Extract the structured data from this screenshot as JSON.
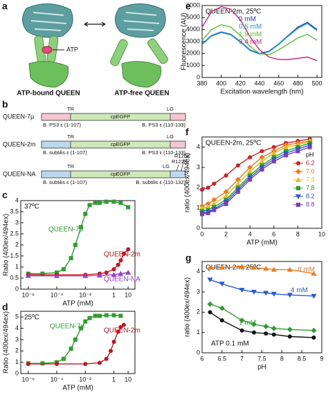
{
  "panel_a": {
    "label": "a",
    "ligand": "ATP",
    "captions": [
      "ATP-bound QUEEN",
      "ATP-free QUEEN"
    ]
  },
  "panel_b": {
    "label": "b",
    "rows": [
      {
        "name": "QUEEN-7μ",
        "tr": "TR",
        "lg": "LG",
        "domain": "cpEGFP",
        "left": "B. PS3 ε (1-107)",
        "right": "B. PS3 ε (110-133)"
      },
      {
        "name": "QUEEN-2m",
        "tr": "TR",
        "lg": "LG",
        "domain": "cpEGFP",
        "left": "B. subtilis ε (1-107)",
        "right": "B. PS3 ε (110-133)"
      },
      {
        "name": "QUEEN-NA",
        "tr": "TR",
        "lg": "LG",
        "domain": "cpEGFP",
        "left": "B. subtilis ε (1-107)",
        "right": "B. subtilis ε (110-132)",
        "mutations": [
          "R122K",
          "R126K"
        ]
      }
    ]
  },
  "chart_data": [
    {
      "type": "line",
      "label": "c",
      "annotation": "37ºC",
      "xlabel": "ATP (mM)",
      "ylabel": "Ratio (400ex/494ex)",
      "xscale": "log",
      "legend": "inline",
      "xlim": [
        3e-07,
        30
      ],
      "xticks": [
        {
          "value": 1e-06,
          "label": "10⁻⁶"
        },
        {
          "value": 0.0001,
          "label": "10⁻⁴"
        },
        {
          "value": 0.01,
          "label": "10⁻²"
        },
        1,
        10
      ],
      "ylim": [
        0,
        4
      ],
      "yticks": [
        0,
        0.5,
        1,
        1.5,
        2,
        2.5,
        3,
        3.5,
        4
      ],
      "series": [
        {
          "name": "QUEEN-7μ",
          "color": "#2e9e2e",
          "marker": "square",
          "x": [
            1e-06,
            1e-05,
            0.0001,
            0.0003,
            0.001,
            0.002,
            0.005,
            0.01,
            0.02,
            0.05,
            0.1,
            0.3,
            1,
            3,
            10
          ],
          "values": [
            0.7,
            0.7,
            0.75,
            0.9,
            1.4,
            2.0,
            2.8,
            3.4,
            3.8,
            3.9,
            3.9,
            3.95,
            3.95,
            3.9,
            3.7
          ]
        },
        {
          "name": "QUEEN-2m",
          "color": "#c8141e",
          "marker": "circle",
          "x": [
            1e-06,
            0.0001,
            0.01,
            0.1,
            0.3,
            1,
            2,
            3,
            5,
            10
          ],
          "values": [
            0.65,
            0.65,
            0.65,
            0.7,
            0.75,
            0.9,
            1.1,
            1.3,
            1.6,
            1.8
          ]
        },
        {
          "name": "QUEEN-NA",
          "color": "#9a3cc8",
          "marker": "triangle",
          "x": [
            1e-06,
            0.0001,
            0.01,
            0.1,
            1,
            3,
            10
          ],
          "values": [
            0.6,
            0.6,
            0.6,
            0.62,
            0.65,
            0.7,
            0.75
          ]
        }
      ]
    },
    {
      "type": "line",
      "label": "d",
      "annotation": "25ºC",
      "xlabel": "ATP (mM)",
      "ylabel": "Ratio (400ex/494ex)",
      "xscale": "log",
      "legend": "inline",
      "xlim": [
        3e-07,
        30
      ],
      "xticks": [
        {
          "value": 1e-06,
          "label": "10⁻⁶"
        },
        {
          "value": 0.0001,
          "label": "10⁻⁴"
        },
        {
          "value": 0.01,
          "label": "10⁻²"
        },
        1,
        10
      ],
      "ylim": [
        0,
        5.5
      ],
      "yticks": [
        0,
        1,
        2,
        3,
        4,
        5
      ],
      "series": [
        {
          "name": "QUEEN-7μ",
          "color": "#2e9e2e",
          "marker": "square",
          "x": [
            1e-06,
            1e-05,
            0.0001,
            0.0003,
            0.001,
            0.002,
            0.005,
            0.01,
            0.02,
            0.05,
            0.1,
            0.3,
            1,
            3
          ],
          "values": [
            0.9,
            0.9,
            1.0,
            1.3,
            2.2,
            3.0,
            4.0,
            4.6,
            4.9,
            5.1,
            5.1,
            5.15,
            5.15,
            5.1
          ]
        },
        {
          "name": "QUEEN-2m",
          "color": "#c8141e",
          "marker": "circle",
          "x": [
            1e-06,
            0.0001,
            0.01,
            0.1,
            0.3,
            0.6,
            1,
            2,
            3,
            5
          ],
          "values": [
            0.85,
            0.85,
            0.85,
            0.95,
            1.3,
            2.0,
            2.8,
            3.7,
            4.1,
            4.3
          ]
        }
      ]
    },
    {
      "type": "line",
      "label": "e",
      "annotation": "QUEEN-2m, 25ºC",
      "xlabel": "Excitation wavelength (nm)",
      "ylabel": "Fluorescence (AU)",
      "legend": "inline",
      "xlim": [
        380,
        505
      ],
      "xticks": [
        380,
        400,
        420,
        440,
        460,
        480,
        500
      ],
      "ylim": [
        0,
        6000
      ],
      "yticks": [
        0,
        1000,
        2000,
        3000,
        4000,
        5000,
        6000
      ],
      "series": [
        {
          "name": "0 mM",
          "color": "#2a3fb4",
          "x": [
            380,
            390,
            400,
            410,
            420,
            430,
            440,
            450,
            460,
            470,
            480,
            490,
            500
          ],
          "values": [
            2800,
            3500,
            3800,
            3600,
            3000,
            2300,
            2000,
            2200,
            2800,
            3500,
            4200,
            4600,
            4000
          ]
        },
        {
          "name": "0.5 mM",
          "color": "#1aa0d0",
          "x": [
            380,
            390,
            400,
            410,
            420,
            430,
            440,
            450,
            460,
            470,
            480,
            490,
            500
          ],
          "values": [
            2750,
            3450,
            3750,
            3550,
            2950,
            2250,
            1950,
            2150,
            2750,
            3450,
            4100,
            4500,
            3900
          ]
        },
        {
          "name": "1.9 mM",
          "color": "#5ac02e",
          "x": [
            380,
            390,
            400,
            410,
            420,
            430,
            440,
            450,
            460,
            470,
            480,
            490,
            500
          ],
          "values": [
            3100,
            4000,
            4400,
            4200,
            3500,
            2600,
            2000,
            1900,
            2300,
            2800,
            3300,
            3600,
            3100
          ]
        },
        {
          "name": "9.4 mM",
          "color": "#d0207a",
          "x": [
            380,
            390,
            400,
            410,
            420,
            430,
            440,
            450,
            460,
            470,
            480,
            490,
            500
          ],
          "values": [
            4200,
            5500,
            5900,
            5700,
            4800,
            3400,
            2300,
            1700,
            1500,
            1500,
            1600,
            1700,
            1400
          ]
        }
      ]
    },
    {
      "type": "line",
      "label": "f",
      "annotation": "QUEEN-2m, 25ºC",
      "xlabel": "ATP (mM)",
      "ylabel": "ratio (400ex/494ex)",
      "legend": "right",
      "legend_title": "pH",
      "xlim": [
        0,
        10
      ],
      "xticks": [
        0,
        2,
        4,
        6,
        8,
        10
      ],
      "ylim": [
        0,
        4.5
      ],
      "yticks": [
        0,
        1,
        2,
        3,
        4
      ],
      "series": [
        {
          "name": "6.2",
          "color": "#d0202a",
          "marker": "circle",
          "x": [
            0,
            0.5,
            1,
            2,
            3,
            4,
            5,
            6,
            7,
            8,
            9
          ],
          "values": [
            1.9,
            2.0,
            2.2,
            2.6,
            3.1,
            3.5,
            3.8,
            4.0,
            4.2,
            4.3,
            4.4
          ]
        },
        {
          "name": "7.0",
          "color": "#f07a18",
          "marker": "diamond",
          "x": [
            0,
            0.5,
            1,
            2,
            3,
            4,
            5,
            6,
            7,
            8,
            9
          ],
          "values": [
            1.1,
            1.2,
            1.4,
            1.8,
            2.4,
            3.0,
            3.5,
            3.8,
            4.1,
            4.2,
            4.3
          ]
        },
        {
          "name": "7.3",
          "color": "#e0c020",
          "marker": "triangle",
          "x": [
            0,
            0.5,
            1,
            2,
            3,
            4,
            5,
            6,
            7,
            8,
            9
          ],
          "values": [
            1.0,
            1.05,
            1.2,
            1.6,
            2.2,
            2.8,
            3.3,
            3.7,
            4.0,
            4.1,
            4.3
          ]
        },
        {
          "name": "7.8",
          "color": "#2e9e2e",
          "marker": "square",
          "x": [
            0,
            0.5,
            1,
            2,
            3,
            4,
            5,
            6,
            7,
            8,
            9
          ],
          "values": [
            0.85,
            0.9,
            1.05,
            1.4,
            2.0,
            2.6,
            3.1,
            3.5,
            3.8,
            4.0,
            4.2
          ]
        },
        {
          "name": "8.2",
          "color": "#2a5ad0",
          "marker": "triangle-down",
          "x": [
            0,
            0.5,
            1,
            2,
            3,
            4,
            5,
            6,
            7,
            8,
            9
          ],
          "values": [
            0.75,
            0.8,
            0.95,
            1.3,
            1.9,
            2.5,
            3.0,
            3.4,
            3.7,
            3.9,
            4.1
          ]
        },
        {
          "name": "8.8",
          "color": "#7a3cc0",
          "marker": "square",
          "x": [
            0,
            0.5,
            1,
            2,
            3,
            4,
            5,
            6,
            7,
            8,
            9
          ],
          "values": [
            0.7,
            0.75,
            0.9,
            1.2,
            1.8,
            2.4,
            2.9,
            3.3,
            3.6,
            3.8,
            4.0
          ]
        }
      ]
    },
    {
      "type": "line",
      "label": "g",
      "annotation": "QUEEN-2m, 25ºC",
      "xlabel": "pH",
      "ylabel": "ratio (400ex/494ex)",
      "legend": "inline",
      "xlim": [
        6,
        9
      ],
      "xticks": [
        6,
        6.5,
        7,
        7.5,
        8,
        8.5,
        9
      ],
      "ylim": [
        0,
        4.5
      ],
      "yticks": [
        0,
        1,
        2,
        3,
        4
      ],
      "series": [
        {
          "name": "8 mM",
          "color": "#f07a18",
          "marker": "triangle",
          "x": [
            6.2,
            6.5,
            7.0,
            7.3,
            7.6,
            7.8,
            8.2,
            8.8
          ],
          "values": [
            4.2,
            4.2,
            4.25,
            4.2,
            4.15,
            4.1,
            4.1,
            3.9
          ]
        },
        {
          "name": "4 mM",
          "color": "#2a5ad0",
          "marker": "triangle-down",
          "x": [
            6.2,
            6.5,
            7.0,
            7.3,
            7.6,
            7.8,
            8.2,
            8.8
          ],
          "values": [
            3.6,
            3.4,
            3.1,
            3.0,
            2.95,
            2.9,
            2.85,
            2.8
          ]
        },
        {
          "name": "1 mM",
          "color": "#2e9e2e",
          "marker": "diamond",
          "x": [
            6.2,
            6.5,
            7.0,
            7.3,
            7.6,
            7.8,
            8.2,
            8.8
          ],
          "values": [
            2.4,
            2.2,
            1.6,
            1.4,
            1.3,
            1.2,
            1.15,
            1.1
          ]
        },
        {
          "name": "ATP 0.1 mM",
          "color": "#111111",
          "marker": "circle",
          "x": [
            6.2,
            6.5,
            7.0,
            7.3,
            7.6,
            7.8,
            8.2,
            8.8
          ],
          "values": [
            2.0,
            1.6,
            1.1,
            1.0,
            0.95,
            0.9,
            0.8,
            0.75
          ]
        }
      ]
    }
  ]
}
